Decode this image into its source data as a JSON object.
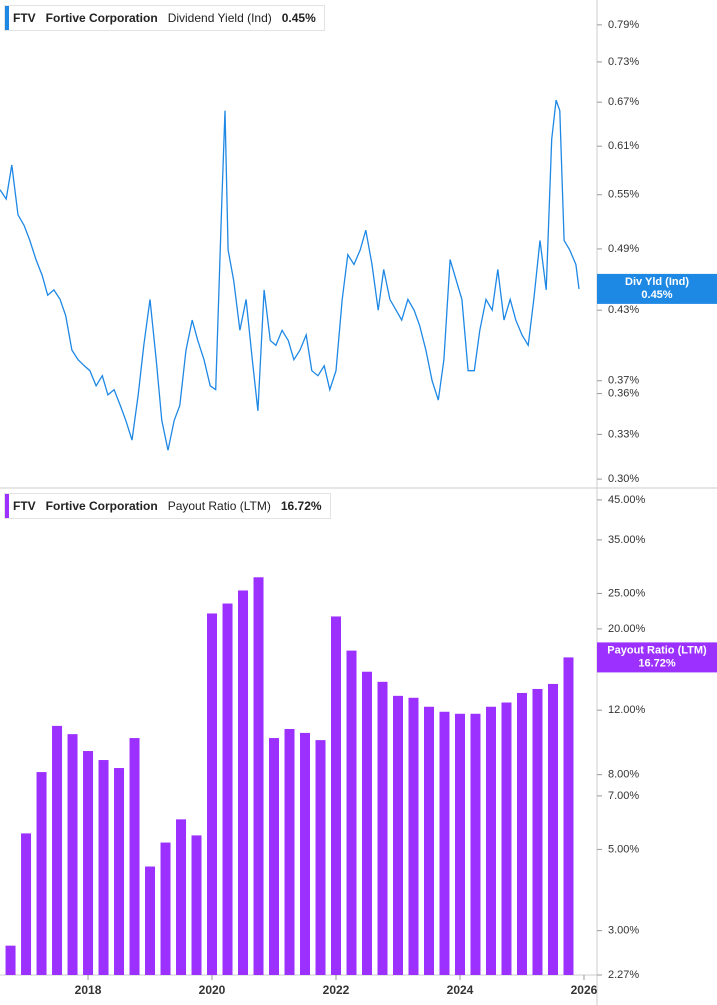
{
  "chart_data": [
    {
      "type": "line",
      "ticker": "FTV",
      "company": "Fortive Corporation",
      "last_value_label": "0.45%",
      "tag_label": "Div Yld (Ind)",
      "log_scale": true,
      "xlim": [
        2016.58,
        2026.21
      ],
      "ylim": [
        0.295,
        0.833
      ],
      "yticks": [
        {
          "value": 0.3,
          "label": "0.30%"
        },
        {
          "value": 0.33,
          "label": "0.33%"
        },
        {
          "value": 0.36,
          "label": "0.36%"
        },
        {
          "value": 0.37,
          "label": "0.37%"
        },
        {
          "value": 0.43,
          "label": "0.43%"
        },
        {
          "value": 0.49,
          "label": "0.49%"
        },
        {
          "value": 0.55,
          "label": "0.55%"
        },
        {
          "value": 0.61,
          "label": "0.61%"
        },
        {
          "value": 0.67,
          "label": "0.67%"
        },
        {
          "value": 0.73,
          "label": "0.73%"
        },
        {
          "value": 0.79,
          "label": "0.79%"
        }
      ],
      "x": [
        2016.58,
        2016.68,
        2016.77,
        2016.87,
        2016.97,
        2017.06,
        2017.16,
        2017.26,
        2017.35,
        2017.45,
        2017.55,
        2017.64,
        2017.74,
        2017.84,
        2017.94,
        2018.03,
        2018.13,
        2018.23,
        2018.32,
        2018.42,
        2018.52,
        2018.61,
        2018.71,
        2018.81,
        2018.9,
        2019.0,
        2019.1,
        2019.19,
        2019.29,
        2019.39,
        2019.48,
        2019.58,
        2019.68,
        2019.77,
        2019.87,
        2019.97,
        2020.06,
        2020.16,
        2020.21,
        2020.26,
        2020.35,
        2020.45,
        2020.55,
        2020.65,
        2020.74,
        2020.84,
        2020.94,
        2021.03,
        2021.13,
        2021.23,
        2021.32,
        2021.42,
        2021.52,
        2021.61,
        2021.71,
        2021.81,
        2021.9,
        2022.0,
        2022.1,
        2022.19,
        2022.29,
        2022.39,
        2022.48,
        2022.58,
        2022.68,
        2022.77,
        2022.87,
        2022.97,
        2023.06,
        2023.16,
        2023.26,
        2023.35,
        2023.45,
        2023.55,
        2023.65,
        2023.74,
        2023.84,
        2023.94,
        2024.03,
        2024.13,
        2024.23,
        2024.32,
        2024.42,
        2024.52,
        2024.61,
        2024.71,
        2024.81,
        2024.9,
        2025.0,
        2025.1,
        2025.19,
        2025.29,
        2025.39,
        2025.48,
        2025.55,
        2025.61,
        2025.68,
        2025.77,
        2025.87,
        2025.92
      ],
      "series": [
        {
          "name": "Dividend Yield (Ind)",
          "color": "#1e88e5",
          "values": [
            0.556,
            0.545,
            0.586,
            0.527,
            0.515,
            0.499,
            0.479,
            0.463,
            0.444,
            0.449,
            0.44,
            0.425,
            0.395,
            0.387,
            0.382,
            0.378,
            0.366,
            0.374,
            0.359,
            0.363,
            0.351,
            0.34,
            0.326,
            0.359,
            0.399,
            0.44,
            0.387,
            0.34,
            0.319,
            0.34,
            0.351,
            0.395,
            0.421,
            0.403,
            0.387,
            0.366,
            0.363,
            0.545,
            0.658,
            0.489,
            0.458,
            0.412,
            0.44,
            0.387,
            0.347,
            0.449,
            0.403,
            0.399,
            0.412,
            0.403,
            0.387,
            0.395,
            0.408,
            0.378,
            0.374,
            0.382,
            0.363,
            0.378,
            0.44,
            0.484,
            0.474,
            0.489,
            0.51,
            0.474,
            0.43,
            0.469,
            0.44,
            0.43,
            0.421,
            0.44,
            0.43,
            0.416,
            0.395,
            0.37,
            0.355,
            0.387,
            0.479,
            0.458,
            0.44,
            0.378,
            0.378,
            0.412,
            0.44,
            0.43,
            0.469,
            0.421,
            0.44,
            0.421,
            0.408,
            0.399,
            0.44,
            0.499,
            0.449,
            0.619,
            0.673,
            0.658,
            0.499,
            0.489,
            0.474,
            0.45
          ]
        }
      ]
    },
    {
      "type": "bar",
      "ticker": "FTV",
      "company": "Fortive Corporation",
      "last_value_label": "16.72%",
      "tag_label": "Payout Ratio (LTM)",
      "log_scale": true,
      "xlim": [
        2016.58,
        2026.21
      ],
      "ylim": [
        2.27,
        47.9
      ],
      "xticks": [
        2018,
        2020,
        2022,
        2024,
        2026
      ],
      "yticks": [
        {
          "value": 2.27,
          "label": "2.27%"
        },
        {
          "value": 3,
          "label": "3.00%"
        },
        {
          "value": 5,
          "label": "5.00%"
        },
        {
          "value": 7,
          "label": "7.00%"
        },
        {
          "value": 8,
          "label": "8.00%"
        },
        {
          "value": 12,
          "label": "12.00%"
        },
        {
          "value": 20,
          "label": "20.00%"
        },
        {
          "value": 25,
          "label": "25.00%"
        },
        {
          "value": 35,
          "label": "35.00%"
        },
        {
          "value": 45,
          "label": "45.00%"
        }
      ],
      "x": [
        2016.75,
        2017.0,
        2017.25,
        2017.5,
        2017.75,
        2018.0,
        2018.25,
        2018.5,
        2018.75,
        2019.0,
        2019.25,
        2019.5,
        2019.75,
        2020.0,
        2020.25,
        2020.5,
        2020.75,
        2021.0,
        2021.25,
        2021.5,
        2021.75,
        2022.0,
        2022.25,
        2022.5,
        2022.75,
        2023.0,
        2023.25,
        2023.5,
        2023.75,
        2024.0,
        2024.25,
        2024.5,
        2024.75,
        2025.0,
        2025.25,
        2025.5,
        2025.75
      ],
      "series": [
        {
          "name": "Payout Ratio (LTM)",
          "color": "#9b30ff",
          "values": [
            2.73,
            5.53,
            8.13,
            10.87,
            10.32,
            9.28,
            8.77,
            8.34,
            10.07,
            4.49,
            5.22,
            6.04,
            5.46,
            22.04,
            23.46,
            25.47,
            27.67,
            10.07,
            10.66,
            10.4,
            9.94,
            21.63,
            17.45,
            15.28,
            14.34,
            13.13,
            12.97,
            12.26,
            11.88,
            11.73,
            11.73,
            12.26,
            12.59,
            13.37,
            13.71,
            14.15,
            16.72
          ]
        }
      ]
    }
  ]
}
